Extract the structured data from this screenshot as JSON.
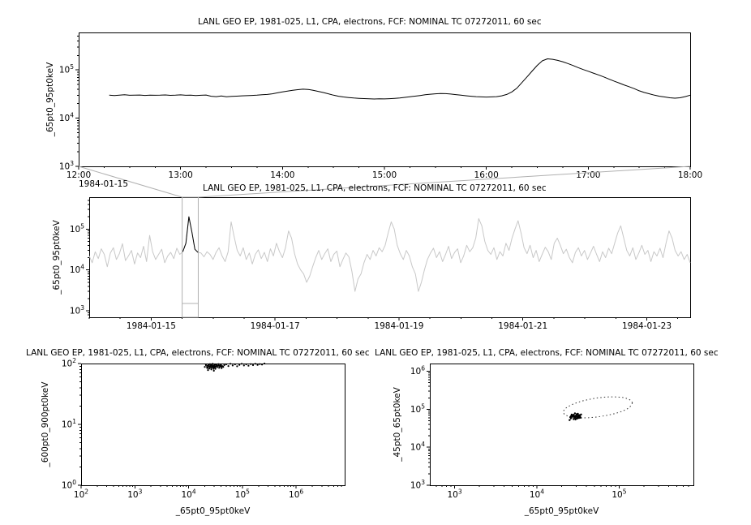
{
  "chart_data": [
    {
      "id": "zoom_timeseries",
      "type": "line",
      "title": "LANL GEO EP, 1981-025, L1, CPA, electrons, FCF: NOMINAL TC 07272011, 60 sec",
      "ylabel": "_65pt0_95pt0keV",
      "context_date": "1984-01-15",
      "x_unit": "hour of day 1984-01-15",
      "xscale": "linear",
      "yscale": "log",
      "xlim": [
        12,
        18
      ],
      "ylim": [
        1000,
        600000
      ],
      "x_start": 12.3,
      "x_step": 0.05,
      "y_scale": 1000,
      "line_color": "#000000",
      "xticks": [
        {
          "v": 12,
          "label": "12:00"
        },
        {
          "v": 13,
          "label": "13:00"
        },
        {
          "v": 14,
          "label": "14:00"
        },
        {
          "v": 15,
          "label": "15:00"
        },
        {
          "v": 16,
          "label": "16:00"
        },
        {
          "v": 17,
          "label": "17:00"
        },
        {
          "v": 18,
          "label": "18:00"
        }
      ],
      "yticks_exp": [
        3,
        4,
        5
      ],
      "values": [
        30,
        29.5,
        30,
        30.5,
        29.8,
        30,
        30.2,
        29.6,
        30.1,
        29.9,
        30,
        30.3,
        29.7,
        30,
        30.4,
        29.8,
        30.1,
        29.5,
        29.9,
        30.2,
        28.5,
        28,
        28.8,
        27.8,
        28.3,
        28.6,
        29,
        29.3,
        29.6,
        30,
        30.5,
        31,
        32,
        33.5,
        35,
        36.5,
        38,
        39,
        40,
        39.5,
        38,
        36,
        34,
        32,
        30,
        28.5,
        27.5,
        26.8,
        26.2,
        25.8,
        25.5,
        25.2,
        25,
        25.3,
        25.1,
        25.4,
        25.8,
        26.3,
        27,
        27.8,
        28.6,
        29.5,
        30.5,
        31.4,
        32,
        32.4,
        32.2,
        31.6,
        30.8,
        30,
        29.2,
        28.5,
        28,
        27.6,
        27.4,
        27.6,
        28,
        29,
        31,
        35,
        42,
        55,
        72,
        95,
        125,
        155,
        170,
        166,
        158,
        148,
        136,
        124,
        112,
        102,
        94,
        86,
        79,
        72,
        65,
        59,
        54,
        49,
        45,
        41,
        37,
        34,
        32,
        30,
        28.5,
        27.5,
        26.5,
        26,
        26.5,
        28,
        30
      ]
    },
    {
      "id": "overview_timeseries",
      "type": "line",
      "title": "LANL GEO EP, 1981-025, L1, CPA, electrons, FCF: NOMINAL TC 07272011, 60 sec",
      "ylabel": "_65pt0_95pt0keV",
      "x_unit": "days since 1984-01-15 00:00",
      "xscale": "linear",
      "yscale": "log",
      "xlim": [
        -1.0,
        8.7
      ],
      "ylim": [
        700,
        600000
      ],
      "x_start": -1.0,
      "x_step": 0.0487437,
      "y_scale": 1000,
      "line_color": "#c8c8c8",
      "highlight": {
        "x_range": [
          0.5,
          0.76
        ],
        "color": "#000000"
      },
      "connector_color": "#b0b0b0",
      "xticks": [
        {
          "v": 0,
          "label": "1984-01-15"
        },
        {
          "v": 2,
          "label": "1984-01-17"
        },
        {
          "v": 4,
          "label": "1984-01-19"
        },
        {
          "v": 6,
          "label": "1984-01-21"
        },
        {
          "v": 8,
          "label": "1984-01-23"
        }
      ],
      "yticks_exp": [
        3,
        4,
        5
      ],
      "values": [
        22,
        15,
        28,
        19,
        33,
        24,
        12,
        26,
        35,
        18,
        25,
        44,
        17,
        22,
        30,
        14,
        26,
        20,
        38,
        16,
        70,
        28,
        18,
        24,
        32,
        15,
        22,
        27,
        19,
        34,
        24,
        28,
        45,
        200,
        85,
        32,
        27,
        26,
        21,
        28,
        24,
        18,
        27,
        35,
        22,
        16,
        28,
        150,
        65,
        30,
        22,
        35,
        18,
        26,
        14,
        24,
        31,
        19,
        27,
        16,
        33,
        22,
        45,
        28,
        20,
        35,
        90,
        60,
        25,
        14,
        10,
        8,
        5,
        7,
        12,
        20,
        30,
        18,
        25,
        33,
        16,
        24,
        29,
        12,
        18,
        26,
        21,
        9,
        3,
        6,
        8,
        15,
        24,
        18,
        30,
        22,
        35,
        28,
        40,
        80,
        150,
        100,
        40,
        25,
        18,
        30,
        22,
        12,
        8,
        3,
        5,
        10,
        18,
        26,
        34,
        20,
        28,
        16,
        24,
        38,
        19,
        27,
        33,
        15,
        22,
        40,
        28,
        35,
        60,
        180,
        120,
        50,
        30,
        24,
        35,
        18,
        28,
        22,
        45,
        30,
        60,
        100,
        160,
        80,
        35,
        25,
        40,
        20,
        30,
        16,
        24,
        36,
        28,
        18,
        45,
        60,
        40,
        25,
        32,
        20,
        15,
        27,
        35,
        22,
        30,
        18,
        26,
        38,
        24,
        16,
        28,
        20,
        34,
        25,
        45,
        80,
        120,
        60,
        30,
        22,
        35,
        18,
        26,
        40,
        24,
        30,
        16,
        28,
        22,
        34,
        20,
        45,
        90,
        60,
        30,
        22,
        28,
        18,
        24,
        15
      ]
    },
    {
      "id": "scatter_600_900_vs_65_95",
      "type": "scatter",
      "title": "LANL GEO EP, 1981-025, L1, CPA, electrons, FCF: NOMINAL TC 07272011, 60 sec",
      "xlabel": "_65pt0_95pt0keV",
      "ylabel": "_600pt0_900pt0keV",
      "xscale": "log",
      "yscale": "log",
      "xlim": [
        100,
        8000000
      ],
      "ylim": [
        1,
        100
      ],
      "xticks_exp": [
        2,
        3,
        4,
        5,
        6
      ],
      "yticks_exp": [
        0,
        1,
        2
      ],
      "point_color": "#000000",
      "dense_count": 35,
      "points": [
        [
          20000,
          88
        ],
        [
          21000,
          95
        ],
        [
          22000,
          85
        ],
        [
          22500,
          92
        ],
        [
          23000,
          78
        ],
        [
          23500,
          96
        ],
        [
          24000,
          90
        ],
        [
          24500,
          83
        ],
        [
          25000,
          98
        ],
        [
          25500,
          87
        ],
        [
          26000,
          93
        ],
        [
          26500,
          80
        ],
        [
          27000,
          95
        ],
        [
          27500,
          88
        ],
        [
          28000,
          99
        ],
        [
          28500,
          84
        ],
        [
          29000,
          91
        ],
        [
          29500,
          76
        ],
        [
          30000,
          94
        ],
        [
          30500,
          86
        ],
        [
          31000,
          97
        ],
        [
          31500,
          82
        ],
        [
          32000,
          90
        ],
        [
          33000,
          95
        ],
        [
          34000,
          87
        ],
        [
          35000,
          92
        ],
        [
          36000,
          98
        ],
        [
          37000,
          85
        ],
        [
          38000,
          93
        ],
        [
          39000,
          89
        ],
        [
          40000,
          96
        ],
        [
          41000,
          84
        ],
        [
          42000,
          91
        ],
        [
          44000,
          88
        ],
        [
          46000,
          94
        ],
        [
          50000,
          97
        ],
        [
          55000,
          91
        ],
        [
          60000,
          99
        ],
        [
          66000,
          93
        ],
        [
          73000,
          97
        ],
        [
          80000,
          90
        ],
        [
          88000,
          95
        ],
        [
          97000,
          99
        ],
        [
          107000,
          93
        ],
        [
          118000,
          97
        ],
        [
          130000,
          92
        ],
        [
          143000,
          98
        ],
        [
          158000,
          94
        ],
        [
          174000,
          99
        ],
        [
          192000,
          95
        ],
        [
          211000,
          98
        ],
        [
          232000,
          96
        ],
        [
          258000,
          100
        ]
      ]
    },
    {
      "id": "scatter_45_65_vs_65_95",
      "type": "scatter",
      "title": "LANL GEO EP, 1981-025, L1, CPA, electrons, FCF: NOMINAL TC 07272011, 60 sec",
      "xlabel": "_65pt0_95pt0keV",
      "ylabel": "_45pt0_65pt0keV",
      "xscale": "log",
      "yscale": "log",
      "xlim": [
        500,
        800000
      ],
      "ylim": [
        1000,
        1600000
      ],
      "xticks_exp": [
        3,
        4,
        5
      ],
      "yticks_exp": [
        3,
        4,
        5,
        6
      ],
      "point_color": "#000000",
      "loop_color": "#333333",
      "loop_points": [
        [
          145000,
          148000
        ],
        [
          140000,
          170000
        ],
        [
          127000,
          190000
        ],
        [
          109000,
          206000
        ],
        [
          89000,
          212000
        ],
        [
          71000,
          211000
        ],
        [
          55000,
          200000
        ],
        [
          43000,
          182000
        ],
        [
          34000,
          161000
        ],
        [
          28000,
          139000
        ],
        [
          24000,
          118000
        ],
        [
          21500,
          100000
        ],
        [
          21000,
          85000
        ],
        [
          21500,
          74000
        ],
        [
          23700,
          66000
        ],
        [
          28000,
          61000
        ],
        [
          34000,
          59000
        ],
        [
          43000,
          60000
        ],
        [
          55000,
          63000
        ],
        [
          71000,
          69000
        ],
        [
          89000,
          77000
        ],
        [
          109000,
          88500
        ],
        [
          127000,
          104000
        ],
        [
          140000,
          124000
        ]
      ],
      "cluster_points": [
        [
          25000,
          52000
        ],
        [
          26000,
          58000
        ],
        [
          27000,
          64000
        ],
        [
          28000,
          55000
        ],
        [
          29000,
          61000
        ],
        [
          30000,
          68000
        ],
        [
          31000,
          57000
        ],
        [
          32000,
          63000
        ],
        [
          33000,
          70000
        ],
        [
          34000,
          60000
        ],
        [
          26500,
          72000
        ],
        [
          28500,
          66000
        ],
        [
          30500,
          74000
        ],
        [
          32500,
          59000
        ],
        [
          27500,
          69000
        ],
        [
          29500,
          54000
        ],
        [
          31500,
          76000
        ],
        [
          33500,
          65000
        ],
        [
          25500,
          62000
        ],
        [
          28000,
          71000
        ],
        [
          30000,
          58000
        ],
        [
          32000,
          67000
        ],
        [
          34500,
          73000
        ],
        [
          26000,
          66000
        ],
        [
          29000,
          78000
        ]
      ]
    }
  ]
}
